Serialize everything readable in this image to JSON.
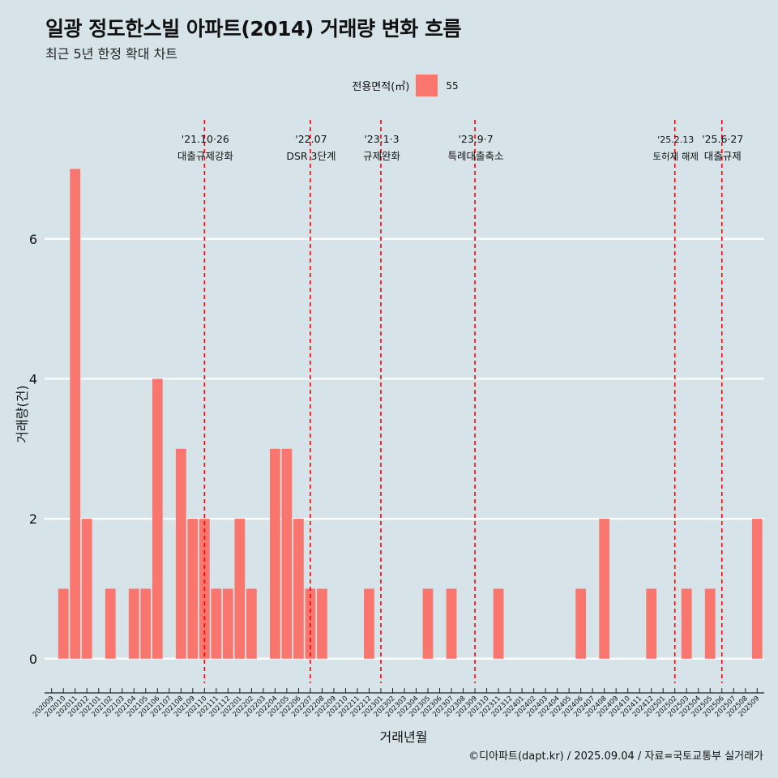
{
  "title": "일광 정도한스빌 아파트(2014) 거래량 변화 흐름",
  "subtitle": "최근 5년 한정 확대 차트",
  "caption": "©디아파트(dapt.kr) / 2025.09.04 / 자료=국토교통부 실거래가",
  "legend": {
    "title": "전용면적(㎡)",
    "label": "55",
    "color": "#f8766d"
  },
  "chart_data": {
    "type": "bar",
    "xlabel": "거래년월",
    "ylabel": "거래량(건)",
    "ylim": [
      -0.35,
      7.7
    ],
    "yticks": [
      0,
      2,
      4,
      6
    ],
    "grid": true,
    "legend_position": "top",
    "categories": [
      "202009",
      "202010",
      "202011",
      "202012",
      "202101",
      "202102",
      "202103",
      "202104",
      "202105",
      "202106",
      "202107",
      "202108",
      "202109",
      "202110",
      "202111",
      "202112",
      "202201",
      "202202",
      "202203",
      "202204",
      "202205",
      "202206",
      "202207",
      "202208",
      "202209",
      "202210",
      "202211",
      "202212",
      "202301",
      "202302",
      "202303",
      "202304",
      "202305",
      "202306",
      "202307",
      "202308",
      "202309",
      "202310",
      "202311",
      "202312",
      "202401",
      "202402",
      "202403",
      "202404",
      "202405",
      "202406",
      "202407",
      "202408",
      "202409",
      "202410",
      "202411",
      "202412",
      "202501",
      "202502",
      "202503",
      "202504",
      "202505",
      "202506",
      "202507",
      "202508",
      "202509"
    ],
    "series": [
      {
        "name": "55",
        "color": "#f8766d",
        "values": [
          0,
          1,
          7,
          2,
          0,
          1,
          0,
          1,
          1,
          4,
          0,
          3,
          2,
          2,
          1,
          1,
          2,
          1,
          0,
          3,
          3,
          2,
          1,
          1,
          0,
          0,
          0,
          1,
          0,
          0,
          0,
          0,
          1,
          0,
          1,
          0,
          0,
          0,
          1,
          0,
          0,
          0,
          0,
          0,
          0,
          1,
          0,
          2,
          0,
          0,
          0,
          1,
          0,
          0,
          1,
          0,
          1,
          0,
          0,
          0,
          2
        ]
      }
    ],
    "annotations": [
      {
        "date": "'21.10·26",
        "label": "대출규제강화",
        "x": "202110",
        "color": "#ff0000"
      },
      {
        "date": "'22.07",
        "label": "DSR 3단계",
        "x": "202207",
        "color": "#ff0000"
      },
      {
        "date": "'23.1·3",
        "label": "규제완화",
        "x": "202301",
        "color": "#ff0000"
      },
      {
        "date": "'23.9·7",
        "label": "특례대출축소",
        "x": "202309",
        "color": "#ff0000"
      },
      {
        "date": "'25.2.13",
        "label": "토허제 해제",
        "x": "202502",
        "color": "#ff0000"
      },
      {
        "date": "'25.6·27",
        "label": "대출규제",
        "x": "202506",
        "color": "#ff0000"
      }
    ]
  }
}
